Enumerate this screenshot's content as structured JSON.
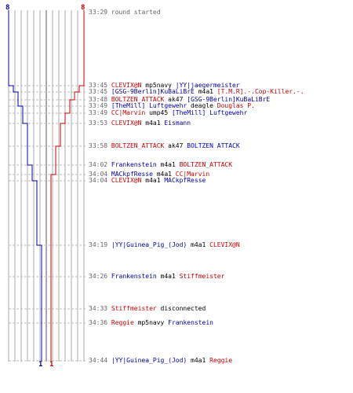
{
  "colors": {
    "red": "#cc0000",
    "blue": "#0000aa",
    "grid": "#aaaaaa",
    "time": "#666666"
  },
  "scores": {
    "blue_start": "8",
    "red_start": "8",
    "blue_end": "1",
    "red_end": "1"
  },
  "events": [
    {
      "time": "33:29",
      "parts": [
        {
          "t": "round started",
          "c": "time"
        }
      ]
    },
    {
      "time": "33:45",
      "parts": [
        {
          "t": "CLEVIX@N",
          "c": "red"
        },
        {
          "t": " mp5navy ",
          "c": "plain"
        },
        {
          "t": "|YY|jaegermeister",
          "c": "blue"
        }
      ]
    },
    {
      "time": "33:45",
      "parts": [
        {
          "t": "[GSG-9Berlin]KuBaLiBrE",
          "c": "blue"
        },
        {
          "t": " m4a1 ",
          "c": "plain"
        },
        {
          "t": "[T.M.R].-.Cop-Killer.-.",
          "c": "red"
        }
      ]
    },
    {
      "time": "33:48",
      "parts": [
        {
          "t": "BOLTZEN_ATTACK",
          "c": "red"
        },
        {
          "t": " ak47 ",
          "c": "plain"
        },
        {
          "t": "[GSG-9Berlin]KuBaLiBrE",
          "c": "blue"
        }
      ]
    },
    {
      "time": "33:49",
      "parts": [
        {
          "t": "[TheMill] Luftgewehr",
          "c": "blue"
        },
        {
          "t": " deagle ",
          "c": "plain"
        },
        {
          "t": "Douglas P.",
          "c": "red"
        }
      ]
    },
    {
      "time": "33:49",
      "parts": [
        {
          "t": "CC|Marvin",
          "c": "red"
        },
        {
          "t": " ump45 ",
          "c": "plain"
        },
        {
          "t": "[TheMill] Luftgewehr",
          "c": "blue"
        }
      ]
    },
    {
      "time": "33:53",
      "parts": [
        {
          "t": "CLEVIX@N",
          "c": "red"
        },
        {
          "t": " m4a1 ",
          "c": "plain"
        },
        {
          "t": "Eismann",
          "c": "blue"
        }
      ]
    },
    {
      "time": "33:58",
      "parts": [
        {
          "t": "BOLTZEN_ATTACK",
          "c": "red"
        },
        {
          "t": " ak47 ",
          "c": "plain"
        },
        {
          "t": "BOLTZEN ATTACK",
          "c": "blue"
        }
      ]
    },
    {
      "time": "34:02",
      "parts": [
        {
          "t": "Frankenstein",
          "c": "blue"
        },
        {
          "t": " m4a1 ",
          "c": "plain"
        },
        {
          "t": "BOLTZEN_ATTACK",
          "c": "red"
        }
      ]
    },
    {
      "time": "34:04",
      "parts": [
        {
          "t": "MACkpfResse",
          "c": "blue"
        },
        {
          "t": " m4a1 ",
          "c": "plain"
        },
        {
          "t": "CC|Marvin",
          "c": "red"
        }
      ]
    },
    {
      "time": "34:04",
      "parts": [
        {
          "t": "CLEVIX@N",
          "c": "red"
        },
        {
          "t": " m4a1 ",
          "c": "plain"
        },
        {
          "t": "MACkpfResse",
          "c": "blue"
        }
      ]
    },
    {
      "time": "34:19",
      "parts": [
        {
          "t": "|YY|Guinea_Pig_(Jod)",
          "c": "blue"
        },
        {
          "t": " m4a1 ",
          "c": "plain"
        },
        {
          "t": "CLEVIX@N",
          "c": "red"
        }
      ]
    },
    {
      "time": "34:26",
      "parts": [
        {
          "t": "Frankenstein",
          "c": "blue"
        },
        {
          "t": " m4a1 ",
          "c": "plain"
        },
        {
          "t": "Stiffmeister",
          "c": "red"
        }
      ]
    },
    {
      "time": "34:33",
      "parts": [
        {
          "t": "Stiffmeister",
          "c": "red"
        },
        {
          "t": " disconnected",
          "c": "plain"
        }
      ]
    },
    {
      "time": "34:36",
      "parts": [
        {
          "t": "Reggie",
          "c": "red"
        },
        {
          "t": " mp5navy ",
          "c": "plain"
        },
        {
          "t": "Frankenstein",
          "c": "blue"
        }
      ]
    },
    {
      "time": "34:44",
      "parts": [
        {
          "t": "|YY|Guinea_Pig_(Jod)",
          "c": "blue"
        },
        {
          "t": " m4a1 ",
          "c": "plain"
        },
        {
          "t": "Reggie",
          "c": "red"
        }
      ]
    }
  ]
}
